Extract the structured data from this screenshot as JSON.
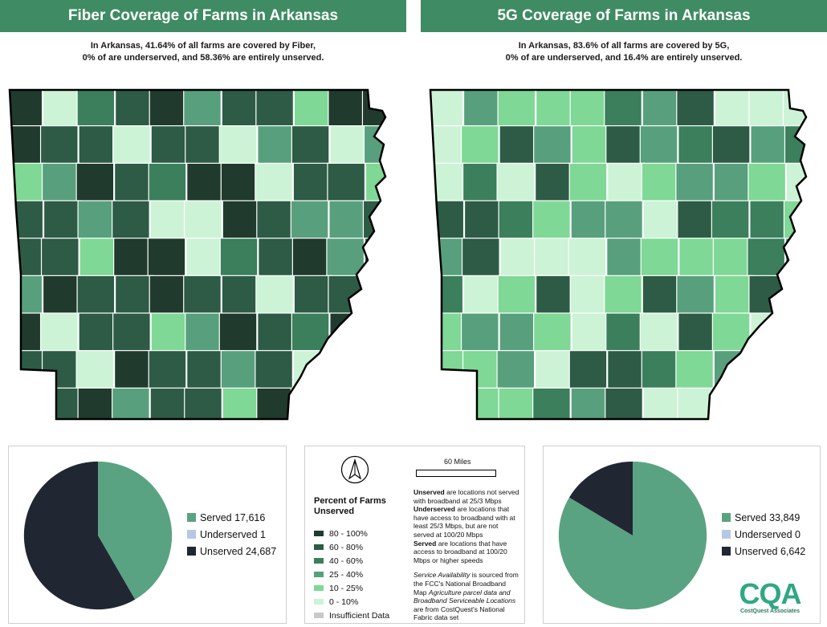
{
  "left": {
    "title": "Fiber Coverage of Farms in Arkansas",
    "subtitle_line1": "In Arkansas, 41.64% of all farms are covered by Fiber,",
    "subtitle_line2": "0% of are underserved, and 58.36% are entirely unserved.",
    "legend": [
      {
        "label": "Served 17,616",
        "color": "#5aa382"
      },
      {
        "label": "Underserved 1",
        "color": "#b6c8e6"
      },
      {
        "label": "Unserved 24,687",
        "color": "#212633"
      }
    ],
    "chart_data": {
      "type": "pie",
      "categories": [
        "Served",
        "Underserved",
        "Unserved"
      ],
      "values": [
        17616,
        1,
        24687
      ],
      "colors": [
        "#5aa382",
        "#b6c8e6",
        "#212633"
      ]
    }
  },
  "right": {
    "title": "5G Coverage of Farms in Arkansas",
    "subtitle_line1": "In Arkansas, 83.6% of all farms are covered by 5G,",
    "subtitle_line2": "0% of are underserved, and 16.4% are entirely unserved.",
    "legend": [
      {
        "label": "Served 33,849",
        "color": "#5aa382"
      },
      {
        "label": "Underserved 0",
        "color": "#b6c8e6"
      },
      {
        "label": "Unserved 6,642",
        "color": "#212633"
      }
    ],
    "chart_data": {
      "type": "pie",
      "categories": [
        "Served",
        "Underserved",
        "Unserved"
      ],
      "values": [
        33849,
        0,
        6642
      ],
      "colors": [
        "#5aa382",
        "#b6c8e6",
        "#212633"
      ]
    }
  },
  "middle": {
    "scale_label": "60 Miles",
    "legend_title": "Percent of Farms Unserved",
    "classes": [
      {
        "label": "80 - 100%",
        "color": "#203a2d"
      },
      {
        "label": "60 - 80%",
        "color": "#2d5b45"
      },
      {
        "label": "40 - 60%",
        "color": "#3b7f5c"
      },
      {
        "label": "25 - 40%",
        "color": "#58a07d"
      },
      {
        "label": "10 - 25%",
        "color": "#7fd896"
      },
      {
        "label": "0 - 10%",
        "color": "#cdf3d6"
      },
      {
        "label": "Insufficient Data",
        "color": "#c9c9c9"
      }
    ],
    "unserved_bold": "Unserved",
    "unserved_text": " are locations not served with broadband at 25/3 Mbps",
    "underserved_bold": "Underserved",
    "underserved_text": " are locations that have access to broadband with at least 25/3 Mbps, but are not served at 100/20 Mbps",
    "served_bold": "Served",
    "served_text": " are locations that have access to broadband at 100/20 Mbps or higher speeds",
    "source_italic1": "Service Availability",
    "source_text1": " is sourced from the FCC's National Broadband Map ",
    "source_italic2": "Agriculture parcel data and Broadband Serviceable Locations",
    "source_text2": " are from CostQuest's National Fabric data set"
  },
  "logo": {
    "name": "CQA",
    "tagline": "CostQuest Associates"
  },
  "map_palettes": {
    "fiber": [
      "#203a2d",
      "#2d5b45",
      "#2d5b45",
      "#203a2d",
      "#3b7f5c",
      "#58a07d",
      "#7fd896",
      "#cdf3d6",
      "#203a2d",
      "#2d5b45"
    ],
    "fiveg": [
      "#cdf3d6",
      "#7fd896",
      "#58a07d",
      "#cdf3d6",
      "#7fd896",
      "#3b7f5c",
      "#cdf3d6",
      "#58a07d",
      "#7fd896",
      "#2d5b45"
    ]
  }
}
